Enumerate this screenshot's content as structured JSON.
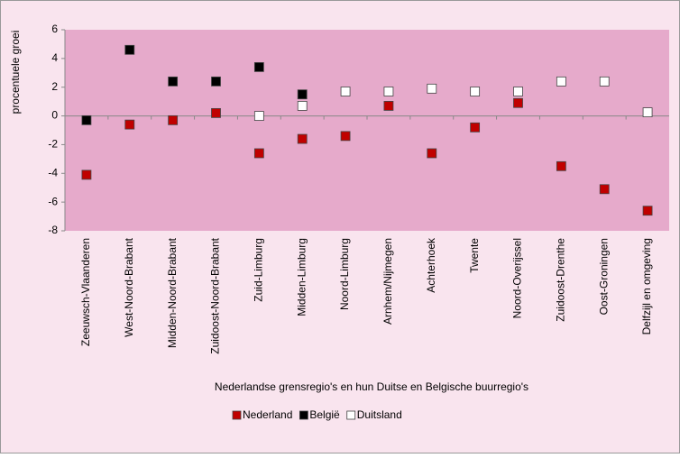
{
  "chart_data": {
    "type": "scatter",
    "y_label": "procentuele groei",
    "x_label": "Nederlandse grensregio's en hun Duitse en Belgische buurregio's",
    "categories": [
      "Zeeuwsch-Vlaanderen",
      "West-Noord-Brabant",
      "Midden-Noord-Brabant",
      "Zuidoost-Noord-Brabant",
      "Zuid-Limburg",
      "Midden-Limburg",
      "Noord-Limburg",
      "Arnhem/Nijmegen",
      "Achterhoek",
      "Twente",
      "Noord-Overijssel",
      "Zuidoost-Drenthe",
      "Oost-Groningen",
      "Delfzijl en omgeving"
    ],
    "series": [
      {
        "name": "Nederland",
        "color": "#c00000",
        "values": [
          -4.1,
          -0.6,
          -0.3,
          0.2,
          -2.6,
          -1.6,
          -1.4,
          0.7,
          -2.6,
          -0.8,
          0.9,
          -3.5,
          -5.1,
          -6.6
        ]
      },
      {
        "name": "België",
        "color": "#000000",
        "values": [
          -0.3,
          4.6,
          2.4,
          2.4,
          3.4,
          1.5,
          null,
          null,
          null,
          null,
          null,
          null,
          null,
          null
        ]
      },
      {
        "name": "Duitsland",
        "color": "#ffffff",
        "values": [
          null,
          null,
          null,
          null,
          0.0,
          0.7,
          1.7,
          1.7,
          1.9,
          1.7,
          1.7,
          2.4,
          2.4,
          0.25
        ]
      }
    ],
    "ylim": [
      -8,
      6
    ],
    "yticks": [
      -8,
      -6,
      -4,
      -2,
      0,
      2,
      4,
      6
    ],
    "legend": "bottom"
  }
}
